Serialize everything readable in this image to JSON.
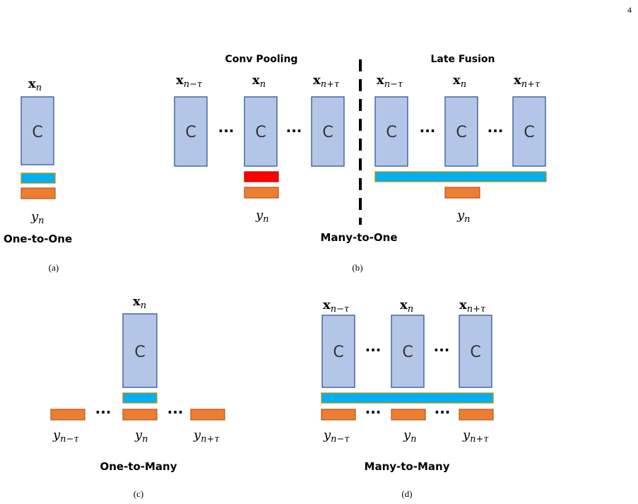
{
  "page_number": "4",
  "cell_label": "C",
  "ellipsis": "···",
  "x_n": "n",
  "x_minus": "n−τ",
  "x_plus": "n+τ",
  "y_n": "n",
  "y_minus": "n−τ",
  "y_plus": "n+τ",
  "panels": {
    "a": {
      "caption": "One-to-One",
      "sublabel": "(a)"
    },
    "b": {
      "caption": "Many-to-One",
      "sublabel": "(b)",
      "left_title": "Conv Pooling",
      "right_title": "Late Fusion"
    },
    "c": {
      "caption": "One-to-Many",
      "sublabel": "(c)"
    },
    "d": {
      "caption": "Many-to-Many",
      "sublabel": "(d)"
    }
  },
  "colors": {
    "cell_fill": "#b4c6e7",
    "cell_border": "#2f5597",
    "feature_blue": "#00b0f0",
    "output_orange": "#ed7d31",
    "pooled_red": "#ff0000"
  }
}
